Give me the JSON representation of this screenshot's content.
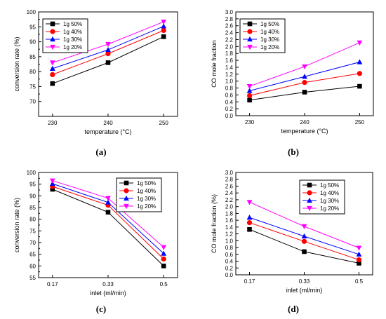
{
  "figure": {
    "captions": [
      "(a)",
      "(b)",
      "(c)",
      "(d)"
    ]
  },
  "colors": {
    "black": "#000000",
    "red": "#ff0000",
    "blue": "#0000ff",
    "magenta": "#ff00ff"
  },
  "chart_data": [
    {
      "id": "a",
      "type": "line",
      "caption": "(a)",
      "xlabel": "temperature (°C)",
      "ylabel": "conversion rate (%)",
      "categories": [
        "230",
        "240",
        "250"
      ],
      "ylim": [
        65,
        100
      ],
      "yticks": [
        70,
        75,
        80,
        85,
        90,
        95,
        100
      ],
      "legend": "top-left",
      "series": [
        {
          "name": "1g 50%",
          "color": "#000000",
          "marker": "square",
          "values": [
            76.0,
            83.0,
            91.7
          ]
        },
        {
          "name": "1g 40%",
          "color": "#ff0000",
          "marker": "circle",
          "values": [
            79.0,
            86.0,
            93.8
          ]
        },
        {
          "name": "1g 30%",
          "color": "#0000ff",
          "marker": "triangle-up",
          "values": [
            81.0,
            87.3,
            95.2
          ]
        },
        {
          "name": "1g 20%",
          "color": "#ff00ff",
          "marker": "triangle-down",
          "values": [
            83.0,
            89.2,
            96.7
          ]
        }
      ]
    },
    {
      "id": "b",
      "type": "line",
      "caption": "(b)",
      "xlabel": "temperature (°C)",
      "ylabel": "CO mole fraction",
      "categories": [
        "230",
        "240",
        "250"
      ],
      "ylim": [
        0.0,
        3.0
      ],
      "yticks": [
        0.0,
        0.2,
        0.4,
        0.6,
        0.8,
        1.0,
        1.2,
        1.4,
        1.6,
        1.8,
        2.0,
        2.2,
        2.4,
        2.6,
        2.8,
        3.0
      ],
      "legend": "top-left",
      "series": [
        {
          "name": "1g 50%",
          "color": "#000000",
          "marker": "square",
          "values": [
            0.45,
            0.68,
            0.85
          ]
        },
        {
          "name": "1g 40%",
          "color": "#ff0000",
          "marker": "circle",
          "values": [
            0.58,
            0.96,
            1.22
          ]
        },
        {
          "name": "1g 30%",
          "color": "#0000ff",
          "marker": "triangle-up",
          "values": [
            0.72,
            1.13,
            1.55
          ]
        },
        {
          "name": "1g 20%",
          "color": "#ff00ff",
          "marker": "triangle-down",
          "values": [
            0.85,
            1.42,
            2.11
          ]
        }
      ]
    },
    {
      "id": "c",
      "type": "line",
      "caption": "(c)",
      "xlabel": "inlet (ml/min)",
      "ylabel": "conversion rate (%)",
      "categories": [
        "0.17",
        "0.33",
        "0.5"
      ],
      "ylim": [
        55,
        100
      ],
      "yticks": [
        55,
        60,
        65,
        70,
        75,
        80,
        85,
        90,
        95,
        100
      ],
      "legend": "top-right",
      "series": [
        {
          "name": "1g 50%",
          "color": "#000000",
          "marker": "square",
          "values": [
            92.8,
            83.0,
            60.0
          ]
        },
        {
          "name": "1g 40%",
          "color": "#ff0000",
          "marker": "circle",
          "values": [
            94.0,
            86.0,
            63.0
          ]
        },
        {
          "name": "1g 30%",
          "color": "#0000ff",
          "marker": "triangle-up",
          "values": [
            95.2,
            87.2,
            65.3
          ]
        },
        {
          "name": "1g 20%",
          "color": "#ff00ff",
          "marker": "triangle-down",
          "values": [
            96.5,
            89.0,
            68.0
          ]
        }
      ]
    },
    {
      "id": "d",
      "type": "line",
      "caption": "(d)",
      "xlabel": "inlet (ml/min)",
      "ylabel": "CO mole fraction (%)",
      "categories": [
        "0.17",
        "0.33",
        "0.5"
      ],
      "ylim": [
        0.0,
        3.0
      ],
      "yticks": [
        0.0,
        0.2,
        0.4,
        0.6,
        0.8,
        1.0,
        1.2,
        1.4,
        1.6,
        1.8,
        2.0,
        2.2,
        2.4,
        2.6,
        2.8,
        3.0
      ],
      "legend": "top-right",
      "series": [
        {
          "name": "1g 50%",
          "color": "#000000",
          "marker": "square",
          "values": [
            1.33,
            0.68,
            0.34
          ]
        },
        {
          "name": "1g 40%",
          "color": "#ff0000",
          "marker": "circle",
          "values": [
            1.53,
            0.98,
            0.44
          ]
        },
        {
          "name": "1g 30%",
          "color": "#0000ff",
          "marker": "triangle-up",
          "values": [
            1.68,
            1.13,
            0.6
          ]
        },
        {
          "name": "1g 20%",
          "color": "#ff00ff",
          "marker": "triangle-down",
          "values": [
            2.13,
            1.42,
            0.79
          ]
        }
      ]
    }
  ]
}
